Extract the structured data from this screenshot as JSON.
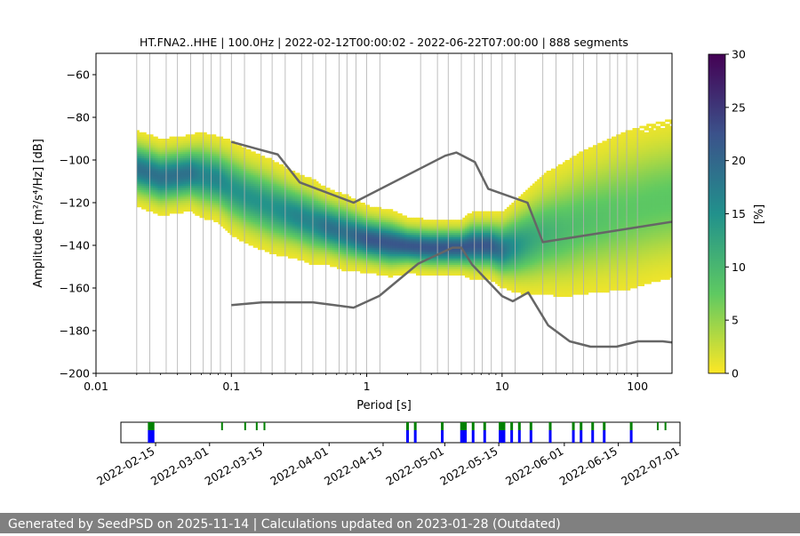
{
  "chart_data": {
    "type": "heatmap",
    "title": "HT.FNA2..HHE | 100.0Hz | 2022-02-12T00:00:02 - 2022-06-22T07:00:00 | 888 segments",
    "xlabel": "Period [s]",
    "ylabel": "Amplitude [m²/s⁴/Hz] [dB]",
    "xscale": "log",
    "xlim": [
      0.01,
      180
    ],
    "ylim": [
      -200,
      -50
    ],
    "xticks": [
      {
        "value": 0.01,
        "label": "0.01"
      },
      {
        "value": 0.1,
        "label": "0.1"
      },
      {
        "value": 1,
        "label": "1"
      },
      {
        "value": 10,
        "label": "10"
      },
      {
        "value": 100,
        "label": "100"
      }
    ],
    "yticks": [
      {
        "value": -60,
        "label": "−60"
      },
      {
        "value": -80,
        "label": "−80"
      },
      {
        "value": -100,
        "label": "−100"
      },
      {
        "value": -120,
        "label": "−120"
      },
      {
        "value": -140,
        "label": "−140"
      },
      {
        "value": -160,
        "label": "−160"
      },
      {
        "value": -180,
        "label": "−180"
      },
      {
        "value": -200,
        "label": "−200"
      }
    ],
    "grid_periods": [
      0.02,
      0.025,
      0.033,
      0.04,
      0.05,
      0.062,
      0.071,
      0.083,
      0.1,
      0.125,
      0.166,
      0.2,
      0.25,
      0.33,
      0.4,
      0.5,
      0.625,
      0.714,
      0.833,
      1.0,
      1.25,
      2.5,
      3.33,
      4.0,
      5.0,
      6.25,
      7.14,
      8.33,
      10.0,
      12.5,
      20.0,
      25.0,
      33.3,
      40.0,
      50.0,
      62.5,
      71.4,
      83.3,
      100.0
    ],
    "psd_mode": {
      "periods": [
        0.02,
        0.025,
        0.03,
        0.04,
        0.05,
        0.06,
        0.08,
        0.1,
        0.13,
        0.17,
        0.2,
        0.3,
        0.4,
        0.5,
        0.7,
        1.0,
        1.5,
        2.0,
        3.0,
        4.0,
        5.0,
        6.0,
        8.0,
        10.0,
        13.0,
        17.0,
        20.0,
        30.0,
        40.0,
        60.0,
        80.0,
        100.0,
        130.0,
        180.0
      ],
      "amplitudes": [
        -104,
        -106,
        -108,
        -107,
        -106,
        -107,
        -109,
        -113,
        -117,
        -120,
        -122,
        -126,
        -129,
        -131,
        -134,
        -137,
        -139,
        -140,
        -141,
        -141,
        -141,
        -140,
        -140,
        -142,
        -140,
        -137,
        -135,
        -132,
        -129,
        -126,
        -124,
        -122,
        -120,
        -118
      ],
      "spread_db": [
        7,
        7,
        7,
        7,
        7,
        8,
        8,
        9,
        9,
        9,
        9,
        8,
        8,
        7,
        7,
        6,
        6,
        5,
        5,
        5,
        5,
        6,
        6,
        7,
        9,
        11,
        12,
        14,
        15,
        16,
        17,
        17,
        17,
        17
      ]
    },
    "nhnm": {
      "periods": [
        0.1,
        0.17,
        0.22,
        0.32,
        0.8,
        3.8,
        4.6,
        6.3,
        7.9,
        15.4,
        20.0,
        354.8
      ],
      "amplitudes": [
        -91.5,
        -95.5,
        -97.4,
        -110.5,
        -120.0,
        -98.0,
        -96.5,
        -101.0,
        -113.5,
        -120.0,
        -138.5,
        -126.0
      ]
    },
    "nlnm": {
      "periods": [
        0.1,
        0.17,
        0.4,
        0.8,
        1.24,
        2.4,
        4.3,
        5.0,
        6.0,
        10.0,
        12.0,
        15.6,
        21.9,
        31.6,
        45.0,
        70.0,
        101.0,
        154.0,
        328.0
      ],
      "amplitudes": [
        -168.0,
        -166.7,
        -166.7,
        -169.2,
        -163.7,
        -148.6,
        -141.1,
        -141.1,
        -149.0,
        -163.8,
        -166.2,
        -162.1,
        -177.5,
        -185.0,
        -187.5,
        -187.5,
        -185.0,
        -185.0,
        -187.5
      ]
    },
    "colorbar": {
      "label": "[%]",
      "min": 0,
      "max": 30,
      "ticks": [
        {
          "value": 0,
          "label": "0"
        },
        {
          "value": 5,
          "label": "5"
        },
        {
          "value": 10,
          "label": "10"
        },
        {
          "value": 15,
          "label": "15"
        },
        {
          "value": 20,
          "label": "20"
        },
        {
          "value": 25,
          "label": "25"
        },
        {
          "value": 30,
          "label": "30"
        }
      ],
      "colors": [
        "#fde725",
        "#5ec962",
        "#21918c",
        "#3b528b",
        "#440154"
      ]
    },
    "data_availability": {
      "xlim": [
        "2022-02-06",
        "2022-07-01"
      ],
      "ticks": [
        "2022-02-15",
        "2022-03-01",
        "2022-03-15",
        "2022-04-01",
        "2022-04-15",
        "2022-05-01",
        "2022-05-15",
        "2022-06-01",
        "2022-06-15",
        "2022-07-01"
      ],
      "data_color": "#0000ff",
      "gap_color": "#008000",
      "segments": [
        {
          "start": "2022-02-13",
          "end": "2022-02-14",
          "kind": "data"
        },
        {
          "start": "2022-03-04",
          "end": "2022-03-04",
          "kind": "gap"
        },
        {
          "start": "2022-03-10",
          "end": "2022-03-10",
          "kind": "gap"
        },
        {
          "start": "2022-03-13",
          "end": "2022-03-13",
          "kind": "gap"
        },
        {
          "start": "2022-03-15",
          "end": "2022-03-15",
          "kind": "gap"
        },
        {
          "start": "2022-04-21",
          "end": "2022-04-21",
          "kind": "data"
        },
        {
          "start": "2022-04-23",
          "end": "2022-04-23",
          "kind": "data"
        },
        {
          "start": "2022-04-30",
          "end": "2022-04-30",
          "kind": "data"
        },
        {
          "start": "2022-05-05",
          "end": "2022-05-06",
          "kind": "data"
        },
        {
          "start": "2022-05-08",
          "end": "2022-05-08",
          "kind": "data"
        },
        {
          "start": "2022-05-11",
          "end": "2022-05-11",
          "kind": "data"
        },
        {
          "start": "2022-05-15",
          "end": "2022-05-16",
          "kind": "data"
        },
        {
          "start": "2022-05-18",
          "end": "2022-05-18",
          "kind": "data"
        },
        {
          "start": "2022-05-20",
          "end": "2022-05-20",
          "kind": "data"
        },
        {
          "start": "2022-05-23",
          "end": "2022-05-23",
          "kind": "data"
        },
        {
          "start": "2022-05-28",
          "end": "2022-05-28",
          "kind": "data"
        },
        {
          "start": "2022-06-03",
          "end": "2022-06-03",
          "kind": "data"
        },
        {
          "start": "2022-06-05",
          "end": "2022-06-05",
          "kind": "data"
        },
        {
          "start": "2022-06-08",
          "end": "2022-06-08",
          "kind": "data"
        },
        {
          "start": "2022-06-11",
          "end": "2022-06-11",
          "kind": "data"
        },
        {
          "start": "2022-06-18",
          "end": "2022-06-18",
          "kind": "data"
        },
        {
          "start": "2022-06-25",
          "end": "2022-06-25",
          "kind": "gap"
        },
        {
          "start": "2022-06-27",
          "end": "2022-06-27",
          "kind": "gap"
        }
      ]
    },
    "legend": "none",
    "grid": "vertical"
  },
  "footer": {
    "text": "Generated by SeedPSD on 2025-11-14 | Calculations updated on 2023-01-28 (Outdated)"
  }
}
